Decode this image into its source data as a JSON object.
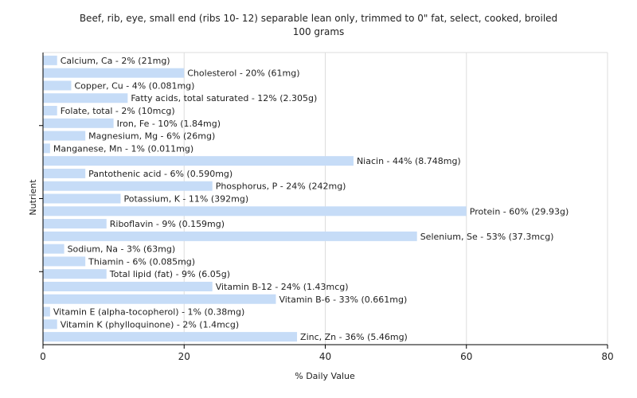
{
  "chart_data": {
    "type": "bar",
    "orientation": "horizontal",
    "title": "Beef, rib, eye, small end (ribs 10- 12) separable lean only, trimmed to 0\" fat, select, cooked, broiled",
    "subtitle": "100 grams",
    "xlabel": "% Daily Value",
    "ylabel": "Nutrient",
    "xlim": [
      0,
      80
    ],
    "xticks": [
      0,
      20,
      40,
      60,
      80
    ],
    "grid": true,
    "bar_color": "#c6dcf7",
    "categories": [
      "Calcium, Ca",
      "Cholesterol",
      "Copper, Cu",
      "Fatty acids, total saturated",
      "Folate, total",
      "Iron, Fe",
      "Magnesium, Mg",
      "Manganese, Mn",
      "Niacin",
      "Pantothenic acid",
      "Phosphorus, P",
      "Potassium, K",
      "Protein",
      "Riboflavin",
      "Selenium, Se",
      "Sodium, Na",
      "Thiamin",
      "Total lipid (fat)",
      "Vitamin B-12",
      "Vitamin B-6",
      "Vitamin E (alpha-tocopherol)",
      "Vitamin K (phylloquinone)",
      "Zinc, Zn"
    ],
    "values": [
      2,
      20,
      4,
      12,
      2,
      10,
      6,
      1,
      44,
      6,
      24,
      11,
      60,
      9,
      53,
      3,
      6,
      9,
      24,
      33,
      1,
      2,
      36
    ],
    "labels": [
      "Calcium, Ca - 2% (21mg)",
      "Cholesterol - 20% (61mg)",
      "Copper, Cu - 4% (0.081mg)",
      "Fatty acids, total saturated - 12% (2.305g)",
      "Folate, total - 2% (10mcg)",
      "Iron, Fe - 10% (1.84mg)",
      "Magnesium, Mg - 6% (26mg)",
      "Manganese, Mn - 1% (0.011mg)",
      "Niacin - 44% (8.748mg)",
      "Pantothenic acid - 6% (0.590mg)",
      "Phosphorus, P - 24% (242mg)",
      "Potassium, K - 11% (392mg)",
      "Protein - 60% (29.93g)",
      "Riboflavin - 9% (0.159mg)",
      "Selenium, Se - 53% (37.3mcg)",
      "Sodium, Na - 3% (63mg)",
      "Thiamin - 6% (0.085mg)",
      "Total lipid (fat) - 9% (6.05g)",
      "Vitamin B-12 - 24% (1.43mcg)",
      "Vitamin B-6 - 33% (0.661mg)",
      "Vitamin E (alpha-tocopherol) - 1% (0.38mg)",
      "Vitamin K (phylloquinone) - 2% (1.4mcg)",
      "Zinc, Zn - 36% (5.46mg)"
    ]
  }
}
